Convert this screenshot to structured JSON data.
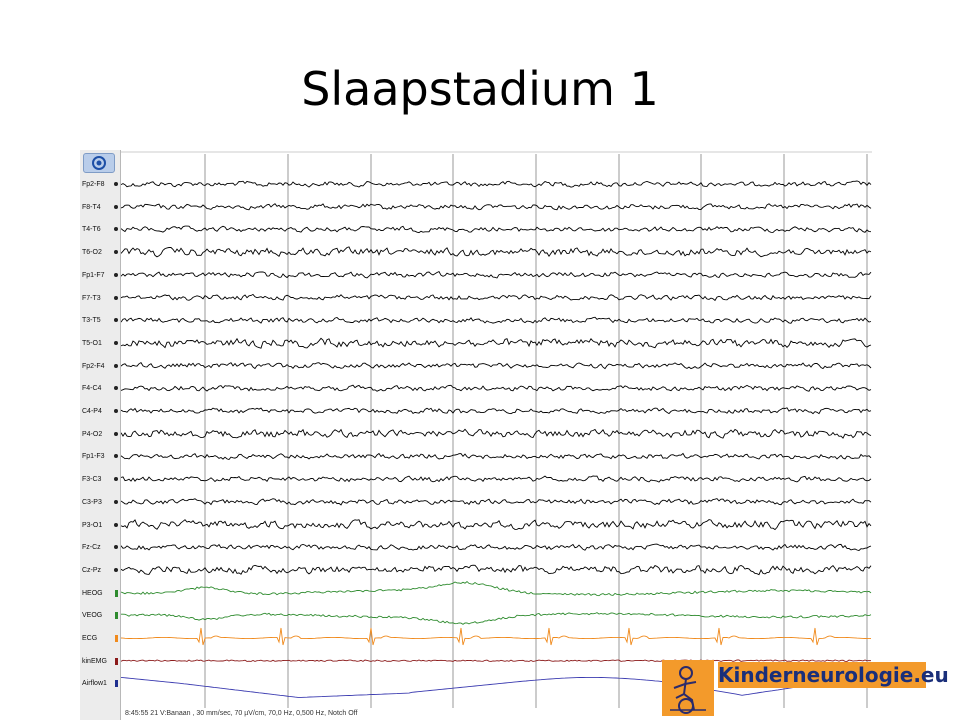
{
  "slide": {
    "title": "Slaapstadium 1"
  },
  "eeg": {
    "channels": [
      {
        "label": "Fp2-F8",
        "color": "#000000",
        "marker": "dot",
        "marker_color": "#222222"
      },
      {
        "label": "F8-T4",
        "color": "#000000",
        "marker": "dot",
        "marker_color": "#222222"
      },
      {
        "label": "T4-T6",
        "color": "#000000",
        "marker": "dot",
        "marker_color": "#222222"
      },
      {
        "label": "T6-O2",
        "color": "#000000",
        "marker": "dot",
        "marker_color": "#222222"
      },
      {
        "label": "Fp1-F7",
        "color": "#000000",
        "marker": "dot",
        "marker_color": "#222222"
      },
      {
        "label": "F7-T3",
        "color": "#000000",
        "marker": "dot",
        "marker_color": "#222222"
      },
      {
        "label": "T3-T5",
        "color": "#000000",
        "marker": "dot",
        "marker_color": "#222222"
      },
      {
        "label": "T5-O1",
        "color": "#000000",
        "marker": "dot",
        "marker_color": "#222222"
      },
      {
        "label": "Fp2-F4",
        "color": "#000000",
        "marker": "dot",
        "marker_color": "#222222"
      },
      {
        "label": "F4-C4",
        "color": "#000000",
        "marker": "dot",
        "marker_color": "#222222"
      },
      {
        "label": "C4-P4",
        "color": "#000000",
        "marker": "dot",
        "marker_color": "#222222"
      },
      {
        "label": "P4-O2",
        "color": "#000000",
        "marker": "dot",
        "marker_color": "#222222"
      },
      {
        "label": "Fp1-F3",
        "color": "#000000",
        "marker": "dot",
        "marker_color": "#222222"
      },
      {
        "label": "F3-C3",
        "color": "#000000",
        "marker": "dot",
        "marker_color": "#222222"
      },
      {
        "label": "C3-P3",
        "color": "#000000",
        "marker": "dot",
        "marker_color": "#222222"
      },
      {
        "label": "P3-O1",
        "color": "#000000",
        "marker": "dot",
        "marker_color": "#222222"
      },
      {
        "label": "Fz-Cz",
        "color": "#000000",
        "marker": "dot",
        "marker_color": "#222222"
      },
      {
        "label": "Cz-Pz",
        "color": "#000000",
        "marker": "dot",
        "marker_color": "#222222"
      },
      {
        "label": "HEOG",
        "color": "#2e8b2e",
        "marker": "bar",
        "marker_color": "#2e8b2e"
      },
      {
        "label": "VEOG",
        "color": "#2e8b2e",
        "marker": "bar",
        "marker_color": "#2e8b2e"
      },
      {
        "label": "ECG",
        "color": "#f08a1c",
        "marker": "bar",
        "marker_color": "#f08a1c"
      },
      {
        "label": "kinEMG",
        "color": "#8b1a1a",
        "marker": "bar",
        "marker_color": "#8b1a1a"
      },
      {
        "label": "Airflow1",
        "color": "#3b3bb0",
        "marker": "bar",
        "marker_color": "#1f2f8f"
      }
    ],
    "status_text": "8:45:55 21 V:Banaan , 30 mm/sec, 70 µV/cm, 70,0 Hz, 0,500 Hz, Notch Off",
    "gridline_color": "#9a9a9a"
  },
  "logo": {
    "text": "Kinderneurologie.eu",
    "background": "#f39a2b",
    "text_color": "#1a2f7a"
  }
}
